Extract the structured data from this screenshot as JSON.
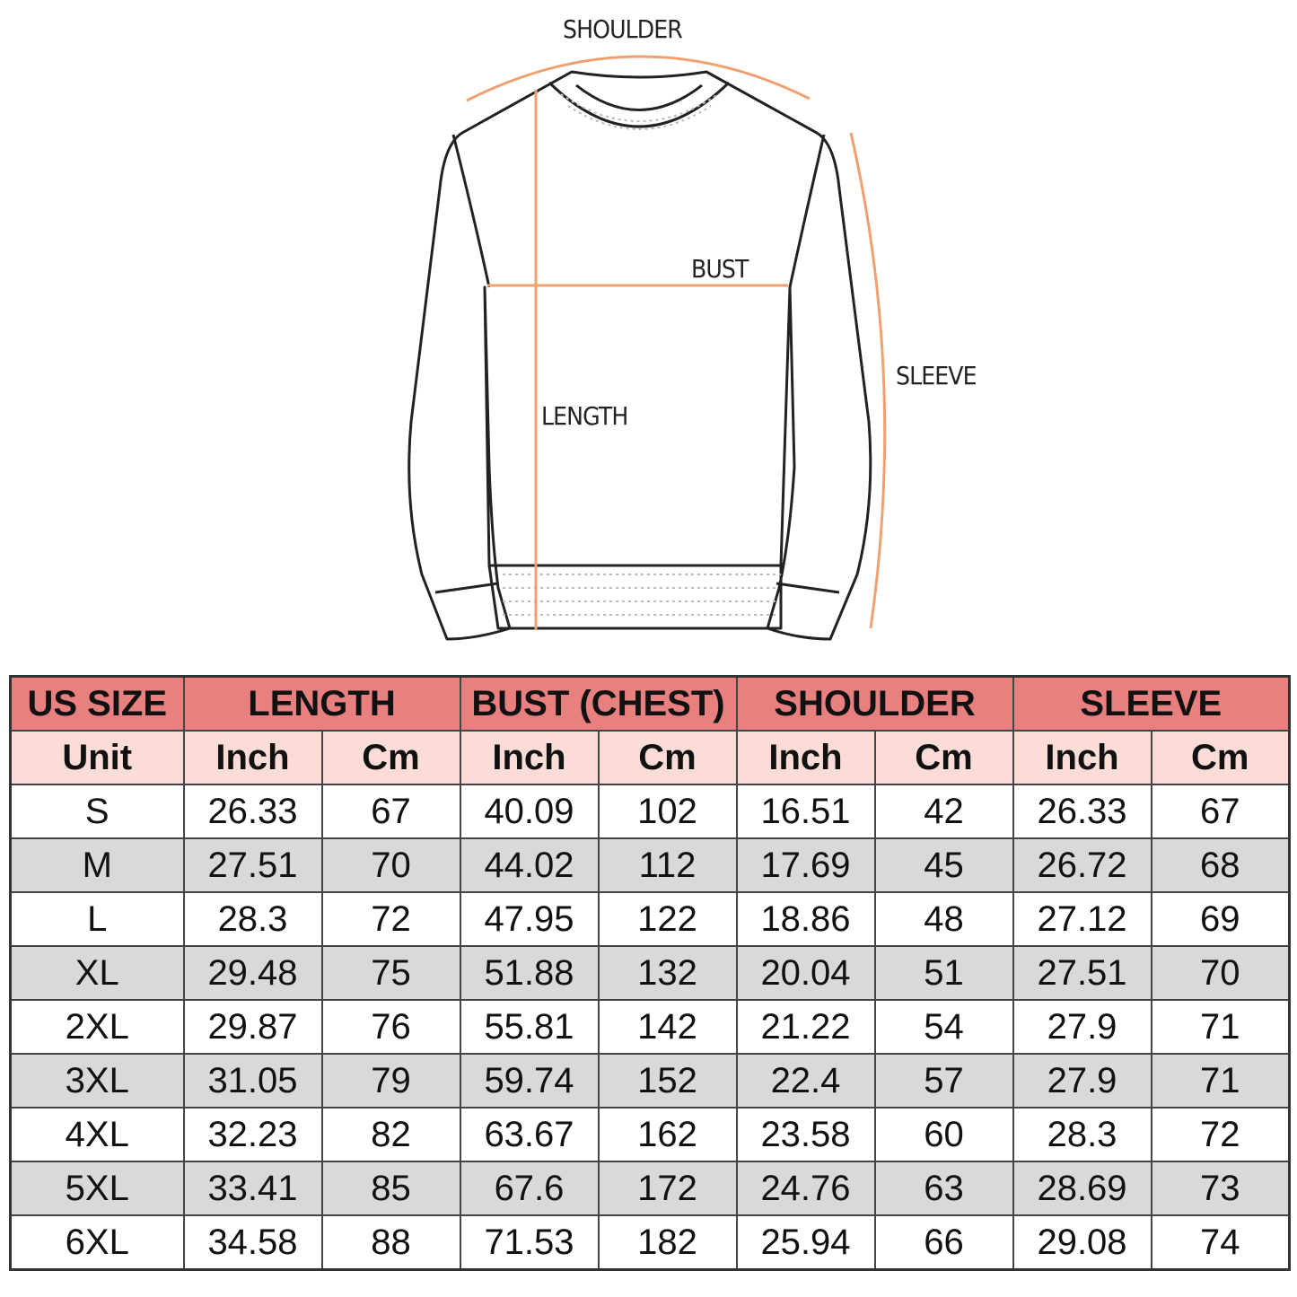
{
  "diagram": {
    "labels": {
      "shoulder": "SHOULDER",
      "bust": "BUST",
      "length": "LENGTH",
      "sleeve": "SLEEVE"
    },
    "colors": {
      "measure_line": "#f0a070",
      "outline": "#222222"
    }
  },
  "table": {
    "colors": {
      "header": "#e8807f",
      "unit_row": "#fbdcd6",
      "alt_row": "#d9d9d9"
    },
    "headers": [
      "US SIZE",
      "LENGTH",
      "BUST (CHEST)",
      "SHOULDER",
      "SLEEVE"
    ],
    "units": [
      "Unit",
      "Inch",
      "Cm",
      "Inch",
      "Cm",
      "Inch",
      "Cm",
      "Inch",
      "Cm"
    ],
    "rows": [
      [
        "S",
        "26.33",
        "67",
        "40.09",
        "102",
        "16.51",
        "42",
        "26.33",
        "67"
      ],
      [
        "M",
        "27.51",
        "70",
        "44.02",
        "112",
        "17.69",
        "45",
        "26.72",
        "68"
      ],
      [
        "L",
        "28.3",
        "72",
        "47.95",
        "122",
        "18.86",
        "48",
        "27.12",
        "69"
      ],
      [
        "XL",
        "29.48",
        "75",
        "51.88",
        "132",
        "20.04",
        "51",
        "27.51",
        "70"
      ],
      [
        "2XL",
        "29.87",
        "76",
        "55.81",
        "142",
        "21.22",
        "54",
        "27.9",
        "71"
      ],
      [
        "3XL",
        "31.05",
        "79",
        "59.74",
        "152",
        "22.4",
        "57",
        "27.9",
        "71"
      ],
      [
        "4XL",
        "32.23",
        "82",
        "63.67",
        "162",
        "23.58",
        "60",
        "28.3",
        "72"
      ],
      [
        "5XL",
        "33.41",
        "85",
        "67.6",
        "172",
        "24.76",
        "63",
        "28.69",
        "73"
      ],
      [
        "6XL",
        "34.58",
        "88",
        "71.53",
        "182",
        "25.94",
        "66",
        "29.08",
        "74"
      ]
    ]
  }
}
